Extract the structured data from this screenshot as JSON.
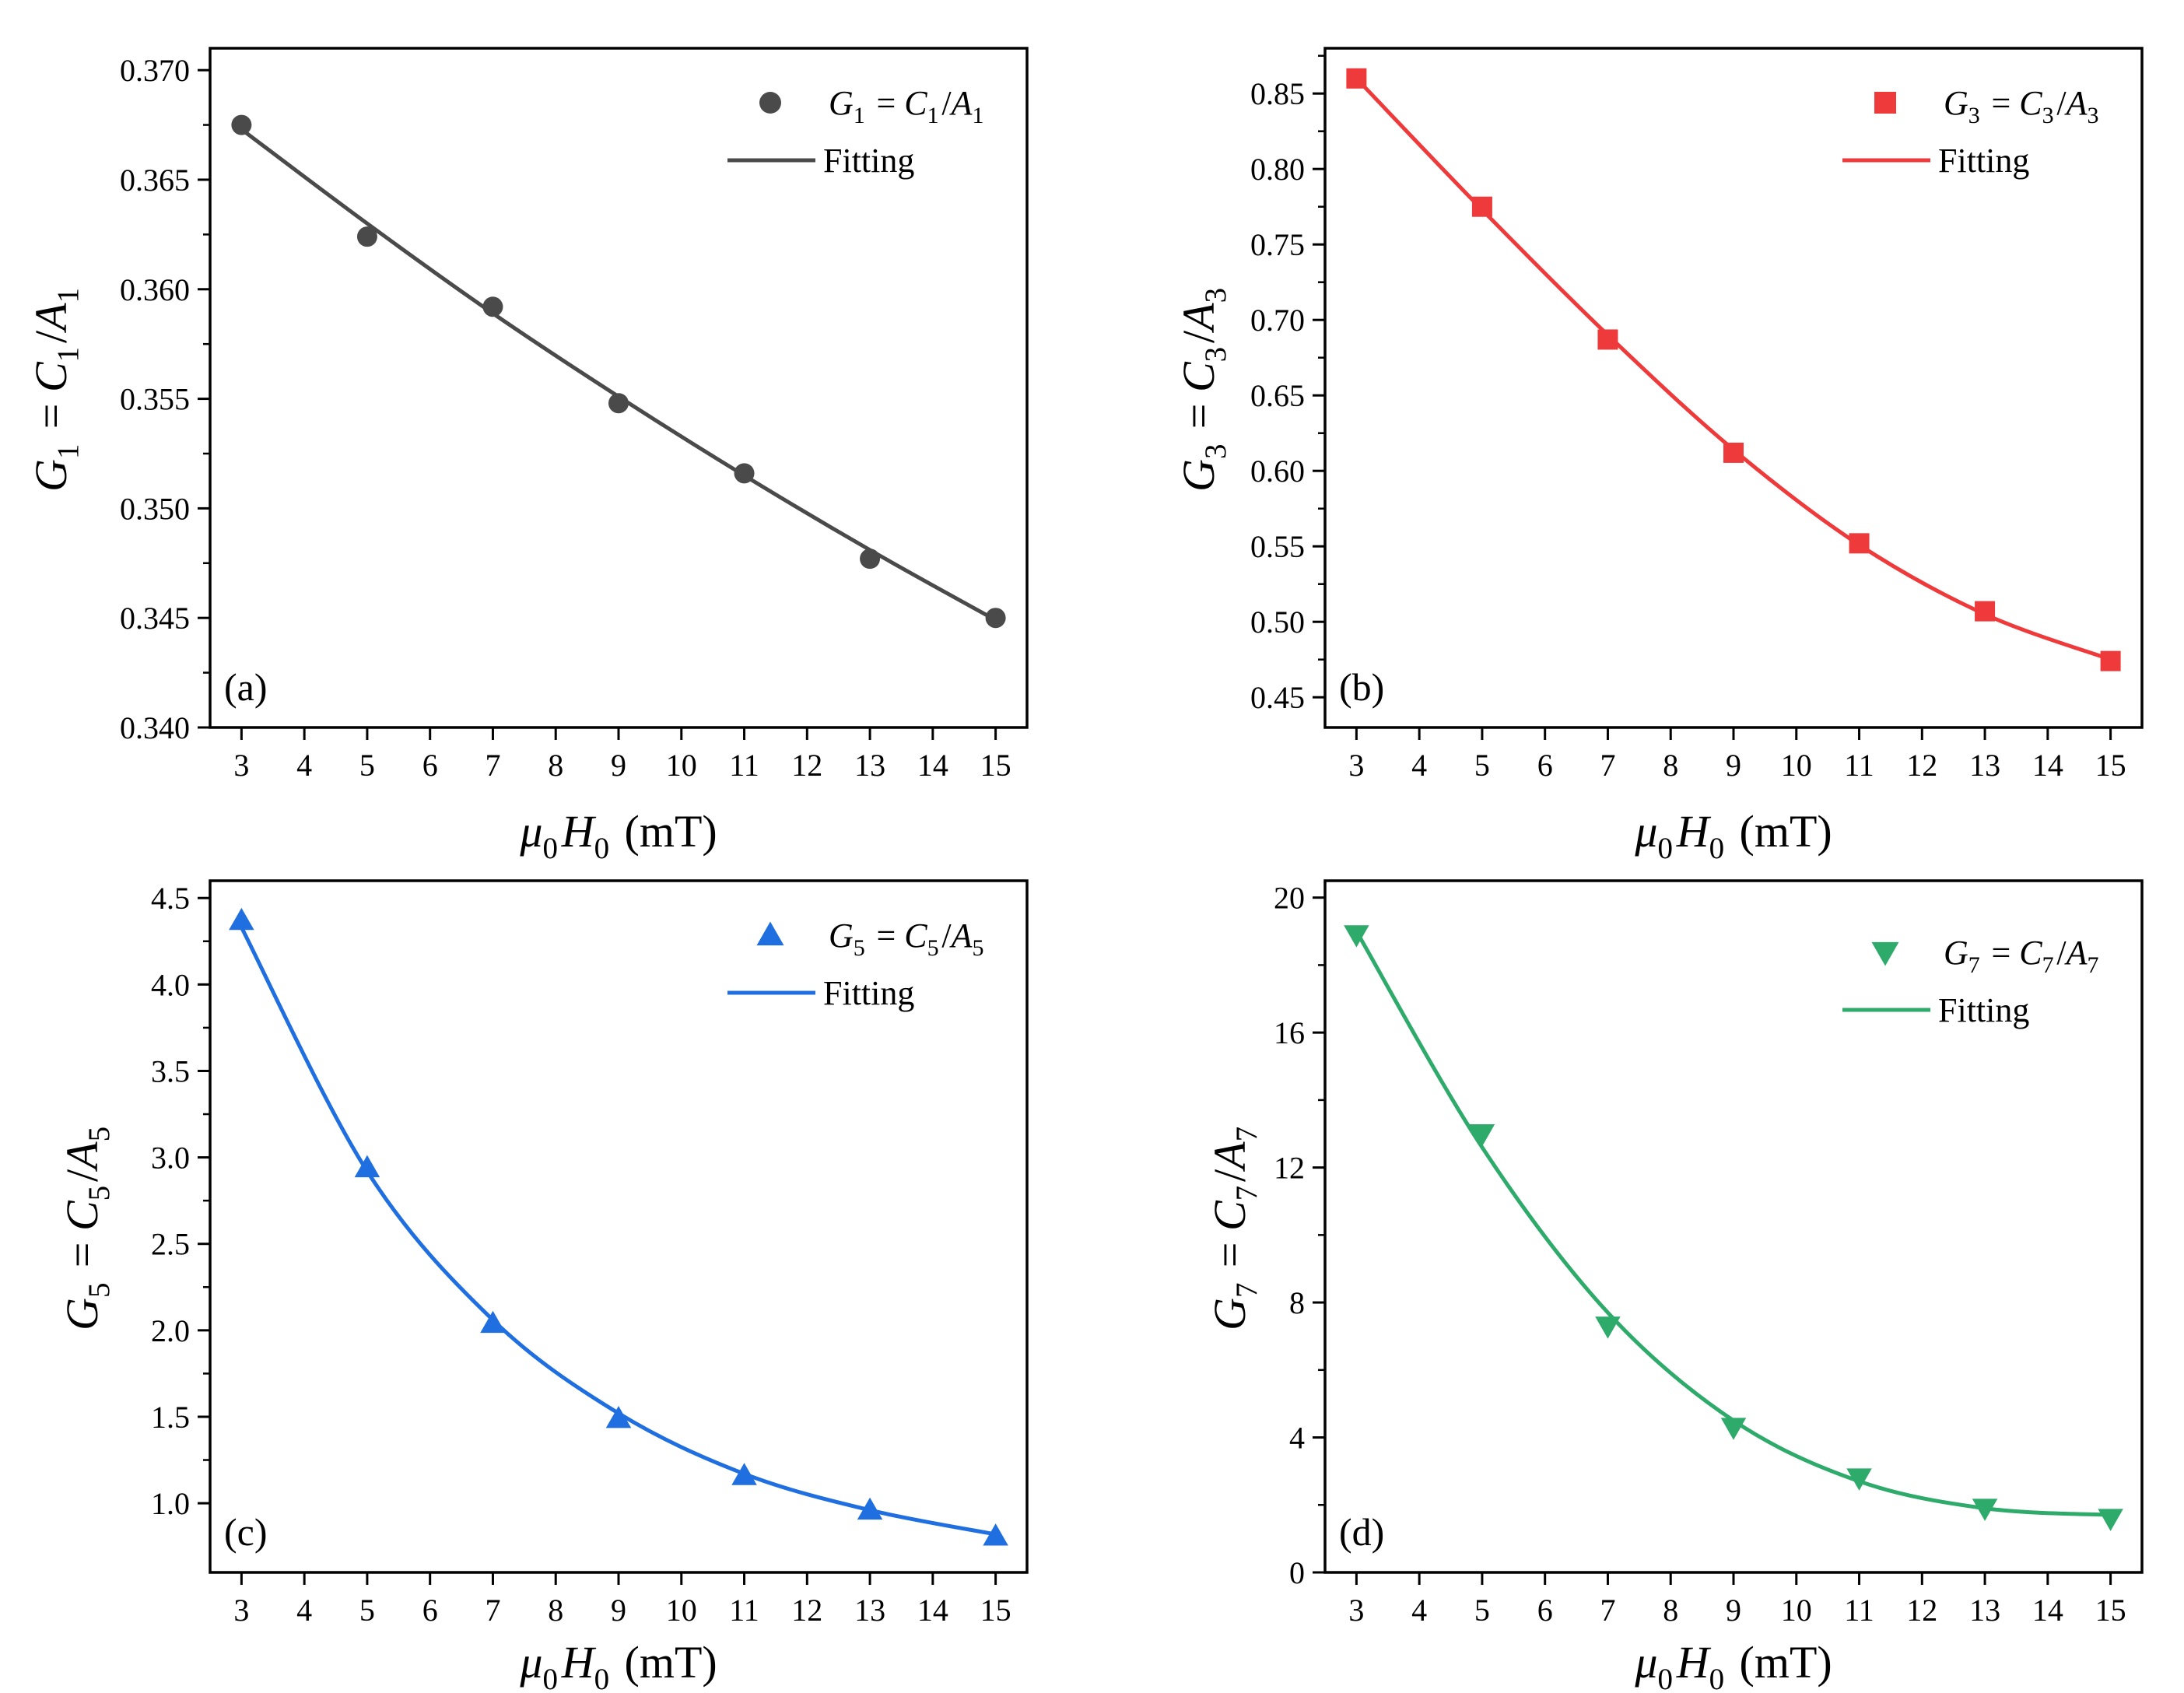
{
  "figure_caption": "",
  "chart_data": [
    {
      "type": "scatter",
      "panel_label": "(a)",
      "color": "#4a4a4a",
      "marker": "circle",
      "x": [
        3,
        5,
        7,
        9,
        11,
        13,
        15
      ],
      "y": [
        0.3675,
        0.3624,
        0.3592,
        0.3548,
        0.3516,
        0.3477,
        0.345
      ],
      "fit_x": [
        3,
        5,
        7,
        9,
        11,
        13,
        15
      ],
      "fit_y": [
        0.3673,
        0.363,
        0.3589,
        0.3551,
        0.3515,
        0.3481,
        0.3449
      ],
      "series": [
        {
          "name": "G1 = C1/A1",
          "kind": "scatter"
        },
        {
          "name": "Fitting",
          "kind": "line"
        }
      ],
      "legend": {
        "position": "top-right",
        "scatter_label": "G1 = C1/A1",
        "fit_label": "Fitting"
      },
      "xlabel": "μ0H0 (mT)",
      "ylabel": "G1 = C1/A1",
      "xlim": [
        2.5,
        15.5
      ],
      "ylim": [
        0.34,
        0.371
      ],
      "xticks": [
        3,
        4,
        5,
        6,
        7,
        8,
        9,
        10,
        11,
        12,
        13,
        14,
        15
      ],
      "yticks": [
        0.34,
        0.345,
        0.35,
        0.355,
        0.36,
        0.365,
        0.37
      ],
      "ytick_labels": [
        "0.340",
        "0.345",
        "0.350",
        "0.355",
        "0.360",
        "0.365",
        "0.370"
      ]
    },
    {
      "type": "scatter",
      "panel_label": "(b)",
      "color": "#ee3a3a",
      "marker": "square",
      "x": [
        3,
        5,
        7,
        9,
        11,
        13,
        15
      ],
      "y": [
        0.86,
        0.775,
        0.687,
        0.612,
        0.552,
        0.507,
        0.474
      ],
      "fit_x": [
        3,
        5,
        7,
        9,
        11,
        13,
        15
      ],
      "fit_y": [
        0.86,
        0.773,
        0.69,
        0.614,
        0.551,
        0.505,
        0.475
      ],
      "series": [
        {
          "name": "G3 = C3/A3",
          "kind": "scatter"
        },
        {
          "name": "Fitting",
          "kind": "line"
        }
      ],
      "legend": {
        "position": "top-right",
        "scatter_label": "G3 = C3/A3",
        "fit_label": "Fitting"
      },
      "xlabel": "μ0H0 (mT)",
      "ylabel": "G3 = C3/A3",
      "xlim": [
        2.5,
        15.5
      ],
      "ylim": [
        0.43,
        0.88
      ],
      "xticks": [
        3,
        4,
        5,
        6,
        7,
        8,
        9,
        10,
        11,
        12,
        13,
        14,
        15
      ],
      "yticks": [
        0.45,
        0.5,
        0.55,
        0.6,
        0.65,
        0.7,
        0.75,
        0.8,
        0.85
      ],
      "ytick_labels": [
        "0.45",
        "0.50",
        "0.55",
        "0.60",
        "0.65",
        "0.70",
        "0.75",
        "0.80",
        "0.85"
      ]
    },
    {
      "type": "scatter",
      "panel_label": "(c)",
      "color": "#1f6fe0",
      "marker": "triangle-up",
      "x": [
        3,
        5,
        7,
        9,
        11,
        13,
        15
      ],
      "y": [
        4.37,
        2.94,
        2.04,
        1.49,
        1.16,
        0.96,
        0.81
      ],
      "fit_x": [
        3,
        5,
        7,
        9,
        11,
        13,
        15
      ],
      "fit_y": [
        4.33,
        2.92,
        2.06,
        1.52,
        1.17,
        0.96,
        0.82
      ],
      "series": [
        {
          "name": "G5 = C5/A5",
          "kind": "scatter"
        },
        {
          "name": "Fitting",
          "kind": "line"
        }
      ],
      "legend": {
        "position": "top-right",
        "scatter_label": "G5 = C5/A5",
        "fit_label": "Fitting"
      },
      "xlabel": "μ0H0 (mT)",
      "ylabel": "G5 = C5/A5",
      "xlim": [
        2.5,
        15.5
      ],
      "ylim": [
        0.6,
        4.6
      ],
      "xticks": [
        3,
        4,
        5,
        6,
        7,
        8,
        9,
        10,
        11,
        12,
        13,
        14,
        15
      ],
      "yticks": [
        1.0,
        1.5,
        2.0,
        2.5,
        3.0,
        3.5,
        4.0,
        4.5
      ],
      "ytick_labels": [
        "1.0",
        "1.5",
        "2.0",
        "2.5",
        "3.0",
        "3.5",
        "4.0",
        "4.5"
      ]
    },
    {
      "type": "scatter",
      "panel_label": "(d)",
      "color": "#2eaa6a",
      "marker": "triangle-down",
      "x": [
        3,
        5,
        7,
        9,
        11,
        13,
        15
      ],
      "y": [
        18.9,
        13.0,
        7.3,
        4.3,
        2.8,
        1.9,
        1.6
      ],
      "fit_x": [
        3,
        5,
        7,
        9,
        11,
        13,
        15
      ],
      "fit_y": [
        19.0,
        12.6,
        7.7,
        4.5,
        2.7,
        1.9,
        1.7
      ],
      "series": [
        {
          "name": "G7 = C7/A7",
          "kind": "scatter"
        },
        {
          "name": "Fitting",
          "kind": "line"
        }
      ],
      "legend": {
        "position": "top-right",
        "scatter_label": "G7 = C7/A7",
        "fit_label": "Fitting"
      },
      "xlabel": "μ0H0 (mT)",
      "ylabel": "G7 = C7/A7",
      "xlim": [
        2.5,
        15.5
      ],
      "ylim": [
        0,
        20.5
      ],
      "xticks": [
        3,
        4,
        5,
        6,
        7,
        8,
        9,
        10,
        11,
        12,
        13,
        14,
        15
      ],
      "yticks": [
        0,
        4,
        8,
        12,
        16,
        20
      ],
      "ytick_labels": [
        "0",
        "4",
        "8",
        "12",
        "16",
        "20"
      ]
    }
  ]
}
